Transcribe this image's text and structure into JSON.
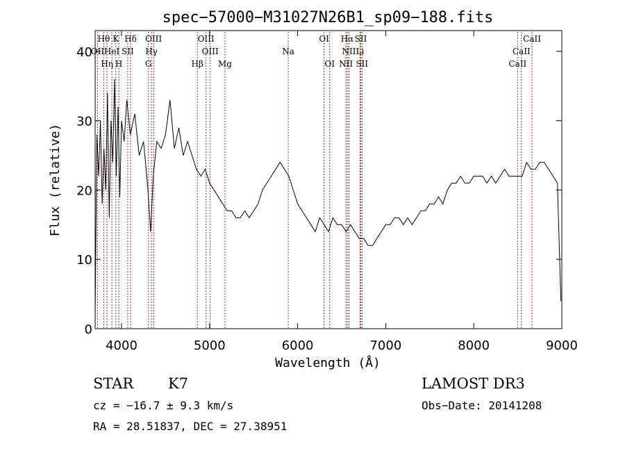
{
  "chart_data": {
    "type": "line",
    "title": "spec−57000−M31027N26B1_sp09−188.fits",
    "xlabel": "Wavelength (Å)",
    "ylabel": "Flux (relative)",
    "xlim": [
      3700,
      9000
    ],
    "ylim": [
      0,
      43
    ],
    "x_ticks": [
      4000,
      5000,
      6000,
      7000,
      8000,
      9000
    ],
    "y_ticks": [
      0,
      10,
      20,
      30,
      40
    ],
    "grid": false,
    "line_color": "#000000",
    "marker_color": "#b22222",
    "series": [
      {
        "x": [
          3700,
          3720,
          3740,
          3760,
          3780,
          3800,
          3820,
          3840,
          3860,
          3880,
          3900,
          3920,
          3940,
          3960,
          3980,
          4000,
          4030,
          4060,
          4100,
          4150,
          4200,
          4250,
          4300,
          4330,
          4360,
          4400,
          4450,
          4500,
          4550,
          4600,
          4650,
          4700,
          4750,
          4800,
          4850,
          4900,
          4950,
          5000,
          5050,
          5100,
          5150,
          5200,
          5250,
          5300,
          5350,
          5400,
          5450,
          5500,
          5550,
          5600,
          5650,
          5700,
          5750,
          5800,
          5850,
          5900,
          5950,
          6000,
          6050,
          6100,
          6150,
          6200,
          6250,
          6300,
          6350,
          6400,
          6450,
          6500,
          6550,
          6600,
          6650,
          6700,
          6750,
          6800,
          6850,
          6900,
          6950,
          7000,
          7050,
          7100,
          7150,
          7200,
          7250,
          7300,
          7350,
          7400,
          7450,
          7500,
          7550,
          7600,
          7650,
          7700,
          7750,
          7800,
          7850,
          7900,
          7950,
          8000,
          8050,
          8100,
          8150,
          8200,
          8250,
          8300,
          8350,
          8400,
          8450,
          8500,
          8550,
          8600,
          8650,
          8700,
          8750,
          8800,
          8850,
          8900,
          8950,
          8990
        ],
        "y": [
          2,
          28,
          22,
          30,
          18,
          26,
          20,
          34,
          16,
          30,
          24,
          36,
          22,
          32,
          19,
          30,
          27,
          33,
          28,
          31,
          25,
          27,
          20,
          14,
          22,
          27,
          26,
          28,
          33,
          26,
          29,
          25,
          27,
          25,
          23,
          22,
          23,
          21,
          20,
          19,
          18,
          17,
          17,
          16,
          16,
          17,
          16,
          17,
          18,
          20,
          21,
          22,
          23,
          24,
          23,
          22,
          20,
          18,
          17,
          16,
          15,
          14,
          16,
          15,
          14,
          16,
          15,
          15,
          14,
          15,
          14,
          13,
          13,
          12,
          12,
          13,
          14,
          15,
          15,
          16,
          16,
          15,
          16,
          15,
          16,
          17,
          17,
          18,
          18,
          19,
          18,
          20,
          21,
          21,
          22,
          21,
          21,
          22,
          22,
          22,
          21,
          22,
          21,
          22,
          23,
          22,
          22,
          22,
          22,
          24,
          23,
          23,
          24,
          24,
          23,
          22,
          21,
          4
        ]
      }
    ],
    "spectral_lines": [
      {
        "label": "Hθ",
        "x": 3798,
        "row": 0
      },
      {
        "label": "K",
        "x": 3934,
        "row": 0
      },
      {
        "label": "Hδ",
        "x": 4102,
        "row": 0
      },
      {
        "label": "OIII",
        "x": 4363,
        "row": 0
      },
      {
        "label": "OIII",
        "x": 4959,
        "row": 0
      },
      {
        "label": "OI",
        "x": 6300,
        "row": 0
      },
      {
        "label": "Hα",
        "x": 6563,
        "row": 0
      },
      {
        "label": "SII",
        "x": 6717,
        "row": 0
      },
      {
        "label": "CaII",
        "x": 8662,
        "row": 0
      },
      {
        "label": "OII",
        "x": 3727,
        "row": 1
      },
      {
        "label": "HeI",
        "x": 3889,
        "row": 1
      },
      {
        "label": "SII",
        "x": 4070,
        "row": 1
      },
      {
        "label": "Hγ",
        "x": 4340,
        "row": 1
      },
      {
        "label": "OIII",
        "x": 5007,
        "row": 1
      },
      {
        "label": "Na",
        "x": 5893,
        "row": 1
      },
      {
        "label": "NII",
        "x": 6583,
        "row": 1
      },
      {
        "label": "Li",
        "x": 6708,
        "row": 1
      },
      {
        "label": "CaII",
        "x": 8542,
        "row": 1
      },
      {
        "label": "Hη",
        "x": 3835,
        "row": 2
      },
      {
        "label": "H",
        "x": 3969,
        "row": 2
      },
      {
        "label": "G",
        "x": 4305,
        "row": 2
      },
      {
        "label": "Hβ",
        "x": 4861,
        "row": 2
      },
      {
        "label": "Mg",
        "x": 5175,
        "row": 2
      },
      {
        "label": "OI",
        "x": 6364,
        "row": 2
      },
      {
        "label": "NII",
        "x": 6548,
        "row": 2
      },
      {
        "label": "SII",
        "x": 6731,
        "row": 2
      },
      {
        "label": "CaII",
        "x": 8498,
        "row": 2
      }
    ]
  },
  "info": {
    "class": "STAR",
    "subclass": "K7",
    "survey": "LAMOST DR3",
    "cz": "cz = −16.7 ± 9.3 km/s",
    "obs_date": "Obs−Date: 20141208",
    "coords": "RA =  28.51837, DEC =  27.38951"
  }
}
